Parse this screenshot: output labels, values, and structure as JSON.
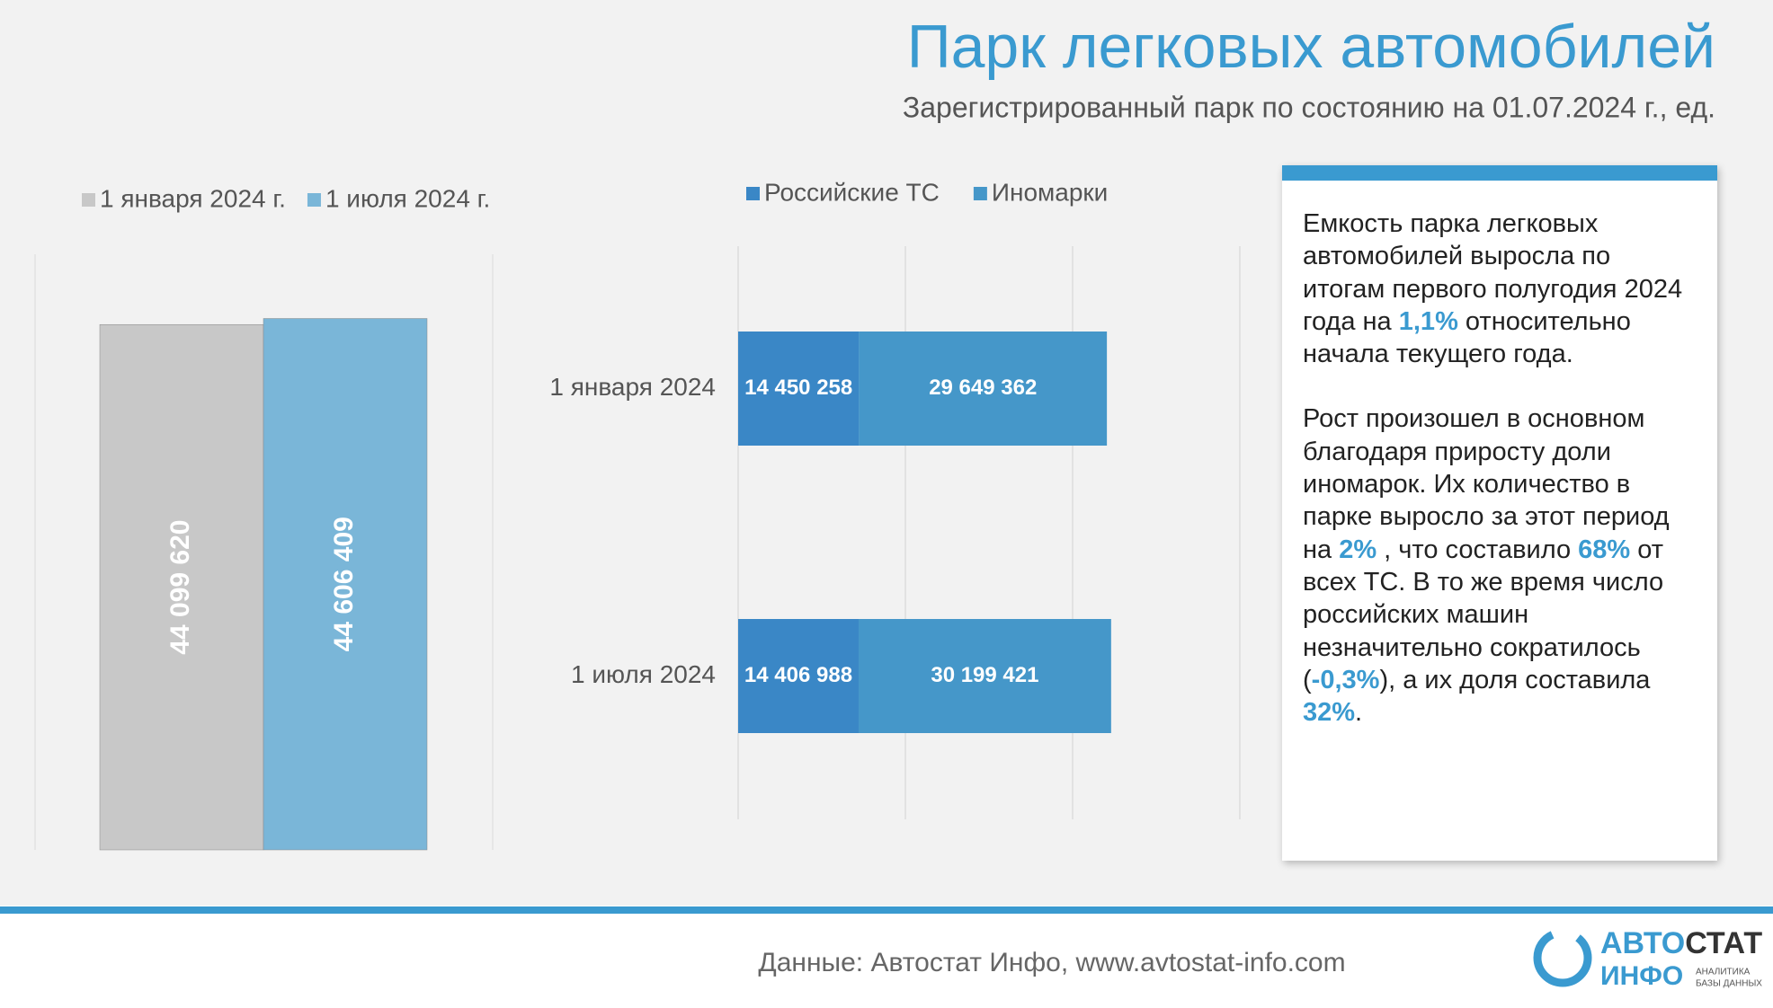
{
  "header": {
    "title": "Парк легковых автомобилей",
    "subtitle": "Зарегистрированный парк по состоянию на 01.07.2024 г., ед."
  },
  "chart_data": [
    {
      "type": "bar",
      "categories": [
        null
      ],
      "ylim": [
        0,
        50000000
      ],
      "series": [
        {
          "name": "1 января 2024 г.",
          "color": "#c8c8c8",
          "values": [
            44099620
          ],
          "value_labels": [
            "44 099 620"
          ]
        },
        {
          "name": "1 июля 2024 г.",
          "color": "#7ab6d8",
          "values": [
            44606409
          ],
          "value_labels": [
            "44 606 409"
          ]
        }
      ]
    },
    {
      "type": "stacked_barh",
      "categories": [
        "1 января 2024",
        "1 июля 2024"
      ],
      "xlim": [
        0,
        60000000
      ],
      "xticks": [
        0,
        20000000,
        40000000,
        60000000
      ],
      "grid": true,
      "series": [
        {
          "name": "Российские ТС",
          "color": "#3a87c6",
          "values": [
            14450258,
            14406988
          ],
          "value_labels": [
            "14 450 258",
            "14 406 988"
          ]
        },
        {
          "name": "Иномарки",
          "color": "#4597c9",
          "values": [
            29649362,
            30199421
          ],
          "value_labels": [
            "29 649 362",
            "30 199 421"
          ]
        }
      ]
    }
  ],
  "panel": {
    "paragraphs": [
      [
        "Емкость парка легковых автомобилей выросла по итогам первого полугодия 2024 года на ",
        {
          "text": "1,1%",
          "color": "#3a9ad0"
        },
        " относительно начала текущего года."
      ],
      [
        "Рост произошел в основном благодаря приросту доли иномарок. Их количество в парке выросло за этот период на ",
        {
          "text": "2%",
          "color": "#3a9ad0"
        },
        " , что составило ",
        {
          "text": "68%",
          "color": "#3a9ad0"
        },
        " от всех ТС. В то же время число российских машин незначительно сократилось (",
        {
          "text": "-0,3%",
          "color": "#3a9ad0"
        },
        "), а их доля составила ",
        {
          "text": "32%",
          "color": "#3a9ad0"
        },
        "."
      ]
    ]
  },
  "footer": {
    "source": "Данные: Автостат Инфо, www.avtostat-info.com",
    "logo": {
      "part1": "АВТО",
      "part2": "СТАТ",
      "part3": "ИНФО",
      "tagline1": "АНАЛИТИКА",
      "tagline2": "БАЗЫ ДАННЫХ"
    }
  }
}
